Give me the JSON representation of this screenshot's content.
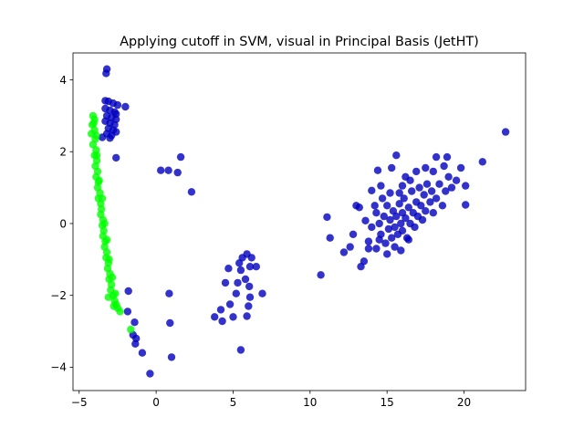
{
  "chart_data": {
    "type": "scatter",
    "title": "Applying cutoff in SVM, visual in Principal Basis (JetHT)",
    "xlabel": "",
    "ylabel": "",
    "xlim": [
      -5.4,
      24.0
    ],
    "ylim": [
      -4.65,
      4.75
    ],
    "xticks": [
      -5,
      0,
      5,
      10,
      15,
      20
    ],
    "yticks": [
      -4,
      -2,
      0,
      2,
      4
    ],
    "grid": false,
    "colors": {
      "blue": "#0000bf",
      "green": "#00ff00"
    },
    "series": [
      {
        "color": "#0000bf",
        "points": [
          [
            -3.2,
            4.3
          ],
          [
            -3.25,
            4.18
          ],
          [
            -3.3,
            3.42
          ],
          [
            -3.1,
            3.4
          ],
          [
            -2.8,
            3.35
          ],
          [
            -2.5,
            3.3
          ],
          [
            -2.0,
            3.25
          ],
          [
            -3.3,
            3.2
          ],
          [
            -3.0,
            3.15
          ],
          [
            -2.7,
            3.1
          ],
          [
            -2.6,
            3.05
          ],
          [
            -3.2,
            3.0
          ],
          [
            -2.9,
            2.95
          ],
          [
            -2.6,
            2.9
          ],
          [
            -3.3,
            2.85
          ],
          [
            -3.0,
            2.8
          ],
          [
            -2.7,
            2.75
          ],
          [
            -3.1,
            2.65
          ],
          [
            -2.8,
            2.6
          ],
          [
            -2.6,
            2.55
          ],
          [
            -3.2,
            2.5
          ],
          [
            -2.9,
            2.45
          ],
          [
            -3.5,
            2.4
          ],
          [
            -3.0,
            2.38
          ],
          [
            -2.6,
            1.83
          ],
          [
            0.3,
            1.48
          ],
          [
            0.8,
            1.48
          ],
          [
            1.4,
            1.42
          ],
          [
            1.6,
            1.85
          ],
          [
            2.3,
            0.88
          ],
          [
            -1.8,
            -1.88
          ],
          [
            -1.85,
            -2.45
          ],
          [
            -1.4,
            -2.75
          ],
          [
            -1.5,
            -3.1
          ],
          [
            -1.3,
            -3.2
          ],
          [
            -1.35,
            -3.35
          ],
          [
            -0.9,
            -3.6
          ],
          [
            -0.4,
            -4.18
          ],
          [
            0.85,
            -1.95
          ],
          [
            0.9,
            -2.77
          ],
          [
            1.0,
            -3.72
          ],
          [
            3.8,
            -2.6
          ],
          [
            4.2,
            -2.4
          ],
          [
            4.3,
            -2.72
          ],
          [
            4.5,
            -1.65
          ],
          [
            4.7,
            -1.25
          ],
          [
            4.8,
            -2.25
          ],
          [
            5.0,
            -2.6
          ],
          [
            5.2,
            -1.95
          ],
          [
            5.3,
            -1.65
          ],
          [
            5.4,
            -1.1
          ],
          [
            5.5,
            -3.52
          ],
          [
            5.5,
            -1.3
          ],
          [
            5.6,
            -0.95
          ],
          [
            5.8,
            -1.55
          ],
          [
            5.9,
            -2.58
          ],
          [
            5.9,
            -0.85
          ],
          [
            6.0,
            -2.3
          ],
          [
            6.05,
            -1.75
          ],
          [
            6.1,
            -2.05
          ],
          [
            6.1,
            -1.2
          ],
          [
            6.2,
            -0.95
          ],
          [
            6.5,
            -1.2
          ],
          [
            6.9,
            -1.95
          ],
          [
            10.7,
            -1.43
          ],
          [
            11.1,
            0.18
          ],
          [
            11.3,
            -0.4
          ],
          [
            12.2,
            -0.8
          ],
          [
            12.6,
            -0.65
          ],
          [
            12.8,
            -0.3
          ],
          [
            13.0,
            0.5
          ],
          [
            13.2,
            0.45
          ],
          [
            13.3,
            -1.2
          ],
          [
            13.5,
            -1.05
          ],
          [
            13.6,
            0.08
          ],
          [
            13.8,
            -0.7
          ],
          [
            14.0,
            0.92
          ],
          [
            14.2,
            0.5
          ],
          [
            14.4,
            1.48
          ],
          [
            14.5,
            -0.45
          ],
          [
            14.6,
            1.05
          ],
          [
            15.3,
            1.55
          ],
          [
            15.6,
            1.9
          ],
          [
            15.8,
            0.85
          ],
          [
            16.2,
            1.3
          ],
          [
            16.5,
            1.2
          ],
          [
            16.9,
            1.45
          ],
          [
            17.5,
            1.55
          ],
          [
            18.0,
            1.45
          ],
          [
            18.2,
            1.85
          ],
          [
            18.7,
            1.6
          ],
          [
            18.9,
            1.85
          ],
          [
            19.8,
            1.55
          ],
          [
            19.2,
            1.0
          ],
          [
            19.5,
            1.2
          ],
          [
            20.1,
            1.05
          ],
          [
            20.1,
            0.52
          ],
          [
            21.2,
            1.72
          ],
          [
            22.7,
            2.55
          ],
          [
            14.0,
            -0.1
          ],
          [
            14.3,
            0.3
          ],
          [
            14.5,
            0.0
          ],
          [
            14.6,
            -0.3
          ],
          [
            14.8,
            0.2
          ],
          [
            14.9,
            -0.55
          ],
          [
            15.0,
            0.5
          ],
          [
            15.1,
            -0.15
          ],
          [
            15.2,
            0.1
          ],
          [
            15.3,
            -0.4
          ],
          [
            15.4,
            0.35
          ],
          [
            15.5,
            -0.1
          ],
          [
            15.6,
            0.2
          ],
          [
            15.7,
            -0.3
          ],
          [
            15.8,
            0.55
          ],
          [
            15.9,
            0.0
          ],
          [
            16.0,
            -0.2
          ],
          [
            16.0,
            0.3
          ],
          [
            16.1,
            0.7
          ],
          [
            16.2,
            0.15
          ],
          [
            16.3,
            -0.4
          ],
          [
            16.4,
            0.45
          ],
          [
            16.5,
            0.0
          ],
          [
            16.6,
            0.9
          ],
          [
            16.7,
            0.3
          ],
          [
            16.8,
            -0.1
          ],
          [
            16.9,
            0.6
          ],
          [
            17.0,
            0.2
          ],
          [
            17.1,
            1.0
          ],
          [
            17.2,
            0.5
          ],
          [
            17.3,
            0.1
          ],
          [
            17.4,
            0.8
          ],
          [
            17.5,
            0.35
          ],
          [
            17.6,
            1.1
          ],
          [
            17.8,
            0.6
          ],
          [
            17.9,
            0.9
          ],
          [
            18.0,
            0.3
          ],
          [
            18.2,
            0.7
          ],
          [
            18.4,
            1.1
          ],
          [
            18.6,
            0.5
          ],
          [
            18.8,
            0.9
          ],
          [
            19.0,
            1.3
          ],
          [
            15.5,
            -0.65
          ],
          [
            15.0,
            -0.85
          ],
          [
            15.9,
            -0.75
          ],
          [
            16.4,
            -0.45
          ],
          [
            14.3,
            -0.7
          ],
          [
            13.8,
            -0.5
          ],
          [
            15.2,
            0.85
          ],
          [
            16.0,
            1.05
          ],
          [
            14.7,
            0.7
          ]
        ]
      },
      {
        "color": "#00ff00",
        "points": [
          [
            -4.1,
            3.0
          ],
          [
            -4.0,
            2.9
          ],
          [
            -4.15,
            2.75
          ],
          [
            -4.0,
            2.6
          ],
          [
            -4.2,
            2.5
          ],
          [
            -3.95,
            2.35
          ],
          [
            -4.1,
            2.2
          ],
          [
            -3.9,
            2.05
          ],
          [
            -4.0,
            1.9
          ],
          [
            -3.85,
            1.75
          ],
          [
            -3.95,
            1.6
          ],
          [
            -3.8,
            1.45
          ],
          [
            -3.9,
            1.3
          ],
          [
            -3.75,
            1.15
          ],
          [
            -3.8,
            1.0
          ],
          [
            -3.65,
            0.85
          ],
          [
            -3.75,
            0.7
          ],
          [
            -3.6,
            0.55
          ],
          [
            -3.55,
            0.4
          ],
          [
            -3.6,
            0.25
          ],
          [
            -3.45,
            0.1
          ],
          [
            -3.5,
            -0.05
          ],
          [
            -3.4,
            -0.2
          ],
          [
            -3.45,
            -0.35
          ],
          [
            -3.3,
            -0.5
          ],
          [
            -3.35,
            -0.65
          ],
          [
            -3.2,
            -0.8
          ],
          [
            -3.25,
            -0.95
          ],
          [
            -3.1,
            -1.1
          ],
          [
            -3.15,
            -1.25
          ],
          [
            -3.0,
            -1.4
          ],
          [
            -3.05,
            -1.55
          ],
          [
            -2.9,
            -1.7
          ],
          [
            -2.95,
            -1.85
          ],
          [
            -2.8,
            -2.0
          ],
          [
            -2.7,
            -2.15
          ],
          [
            -2.6,
            -2.25
          ],
          [
            -2.5,
            -2.35
          ],
          [
            -2.35,
            -2.45
          ],
          [
            -1.65,
            -2.95
          ],
          [
            -4.05,
            2.8
          ],
          [
            -3.9,
            2.45
          ],
          [
            -3.85,
            1.9
          ],
          [
            -3.7,
            1.2
          ],
          [
            -3.5,
            0.7
          ],
          [
            -3.35,
            0.0
          ],
          [
            -3.2,
            -0.45
          ],
          [
            -3.05,
            -1.0
          ],
          [
            -2.85,
            -1.5
          ],
          [
            -2.65,
            -1.95
          ],
          [
            -2.75,
            -2.3
          ],
          [
            -3.1,
            -2.05
          ]
        ]
      }
    ]
  }
}
